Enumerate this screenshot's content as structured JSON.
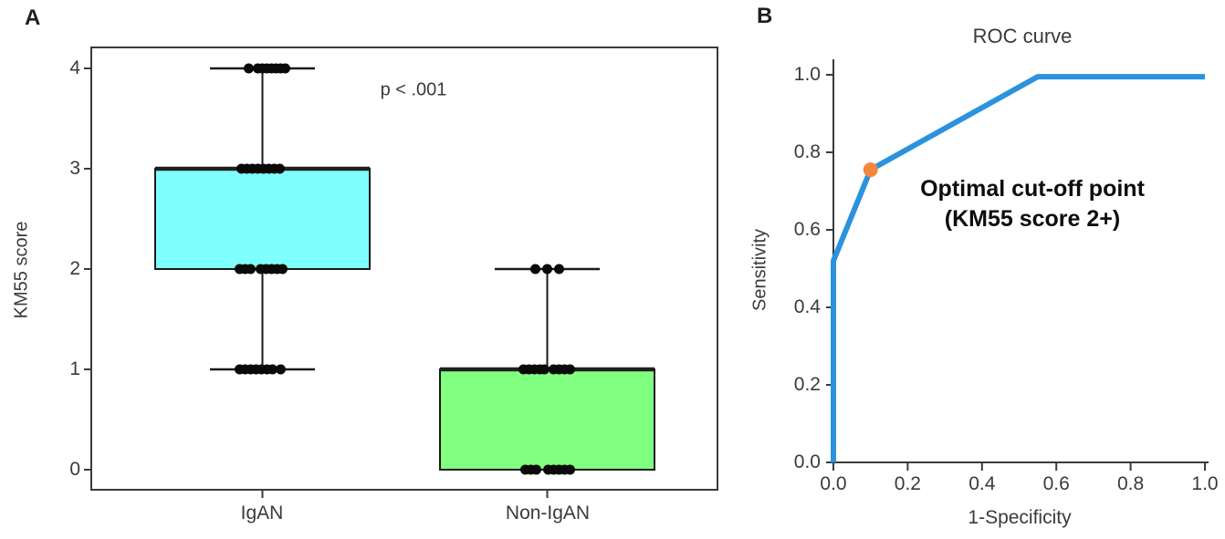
{
  "panels": {
    "a": {
      "label": "A",
      "ylabel": "KM55 score",
      "p_value": "p < .001",
      "categories": [
        "IgAN",
        "Non-IgAN"
      ]
    },
    "b": {
      "label": "B",
      "title": "ROC curve",
      "xlabel": "1-Specificity",
      "ylabel": "Sensitivity",
      "annotation_line1": "Optimal cut-off point",
      "annotation_line2": "(KM55 score 2+)"
    }
  },
  "colors": {
    "axis": "#3a3a3a",
    "box_border": "#1a1a1a",
    "median": "#202020",
    "points": "#0a0a0a",
    "box_igan": "#80ffff",
    "box_non_igan": "#80ff80",
    "roc_line": "#2b93de",
    "optimal_point": "#f5863c"
  },
  "chart_data": [
    {
      "type": "boxplot",
      "panel": "A",
      "title": "",
      "xlabel": "",
      "ylabel": "KM55 score",
      "ylim": [
        -0.2,
        4.2
      ],
      "yticks": [
        0,
        1,
        2,
        3,
        4
      ],
      "ytick_labels": [
        "0",
        "1",
        "2",
        "3",
        "4"
      ],
      "categories": [
        "IgAN",
        "Non-IgAN"
      ],
      "annotation": "p < .001",
      "grid": false,
      "groups": [
        {
          "name": "IgAN",
          "box_color": "#80ffff",
          "whisker_low": 1,
          "q1": 2,
          "median": 3,
          "q3": 3,
          "whisker_high": 4,
          "points": [
            {
              "value": 4,
              "jitter": [
                -15,
                -5,
                0,
                5,
                10,
                15,
                20,
                25
              ]
            },
            {
              "value": 3,
              "jitter": [
                -23,
                -17,
                -11,
                -5,
                1,
                7,
                13,
                19
              ]
            },
            {
              "value": 2,
              "jitter": [
                -25,
                -19,
                -13,
                -2,
                4,
                10,
                16,
                22
              ]
            },
            {
              "value": 1,
              "jitter": [
                -25,
                -19,
                -13,
                -7,
                -1,
                5,
                11,
                20
              ]
            }
          ]
        },
        {
          "name": "Non-IgAN",
          "box_color": "#80ff80",
          "whisker_low": 0,
          "q1": 0,
          "median": 1,
          "q3": 1,
          "whisker_high": 2,
          "points": [
            {
              "value": 2,
              "jitter": [
                -13,
                0,
                13
              ]
            },
            {
              "value": 1,
              "jitter": [
                -26,
                -20,
                -14,
                -8,
                -3,
                7,
                13,
                19,
                25
              ]
            },
            {
              "value": 0,
              "jitter": [
                -24,
                -18,
                -12,
                1,
                7,
                13,
                19,
                25
              ]
            }
          ]
        }
      ]
    },
    {
      "type": "line",
      "panel": "B",
      "title": "ROC curve",
      "xlabel": "1-Specificity",
      "ylabel": "Sensitivity",
      "xlim": [
        0,
        1
      ],
      "ylim": [
        0,
        1
      ],
      "xticks": [
        0,
        0.2,
        0.4,
        0.6,
        0.8,
        1.0
      ],
      "yticks": [
        0,
        0.2,
        0.4,
        0.6,
        0.8,
        1.0
      ],
      "xtick_labels": [
        "0.0",
        "0.2",
        "0.4",
        "0.6",
        "0.8",
        "1.0"
      ],
      "ytick_labels": [
        "0.0",
        "0.2",
        "0.4",
        "0.6",
        "0.8",
        "1.0"
      ],
      "grid": false,
      "legend": "none",
      "series": [
        {
          "name": "ROC curve",
          "color": "#2b93de",
          "x": [
            0,
            0,
            0.1,
            0.55,
            1.0
          ],
          "y": [
            0,
            0.52,
            0.755,
            0.995,
            0.995
          ]
        }
      ],
      "optimal_point": {
        "x": 0.1,
        "y": 0.755,
        "color": "#f5863c",
        "label": "Optimal cut-off point (KM55 score 2+)"
      }
    }
  ]
}
